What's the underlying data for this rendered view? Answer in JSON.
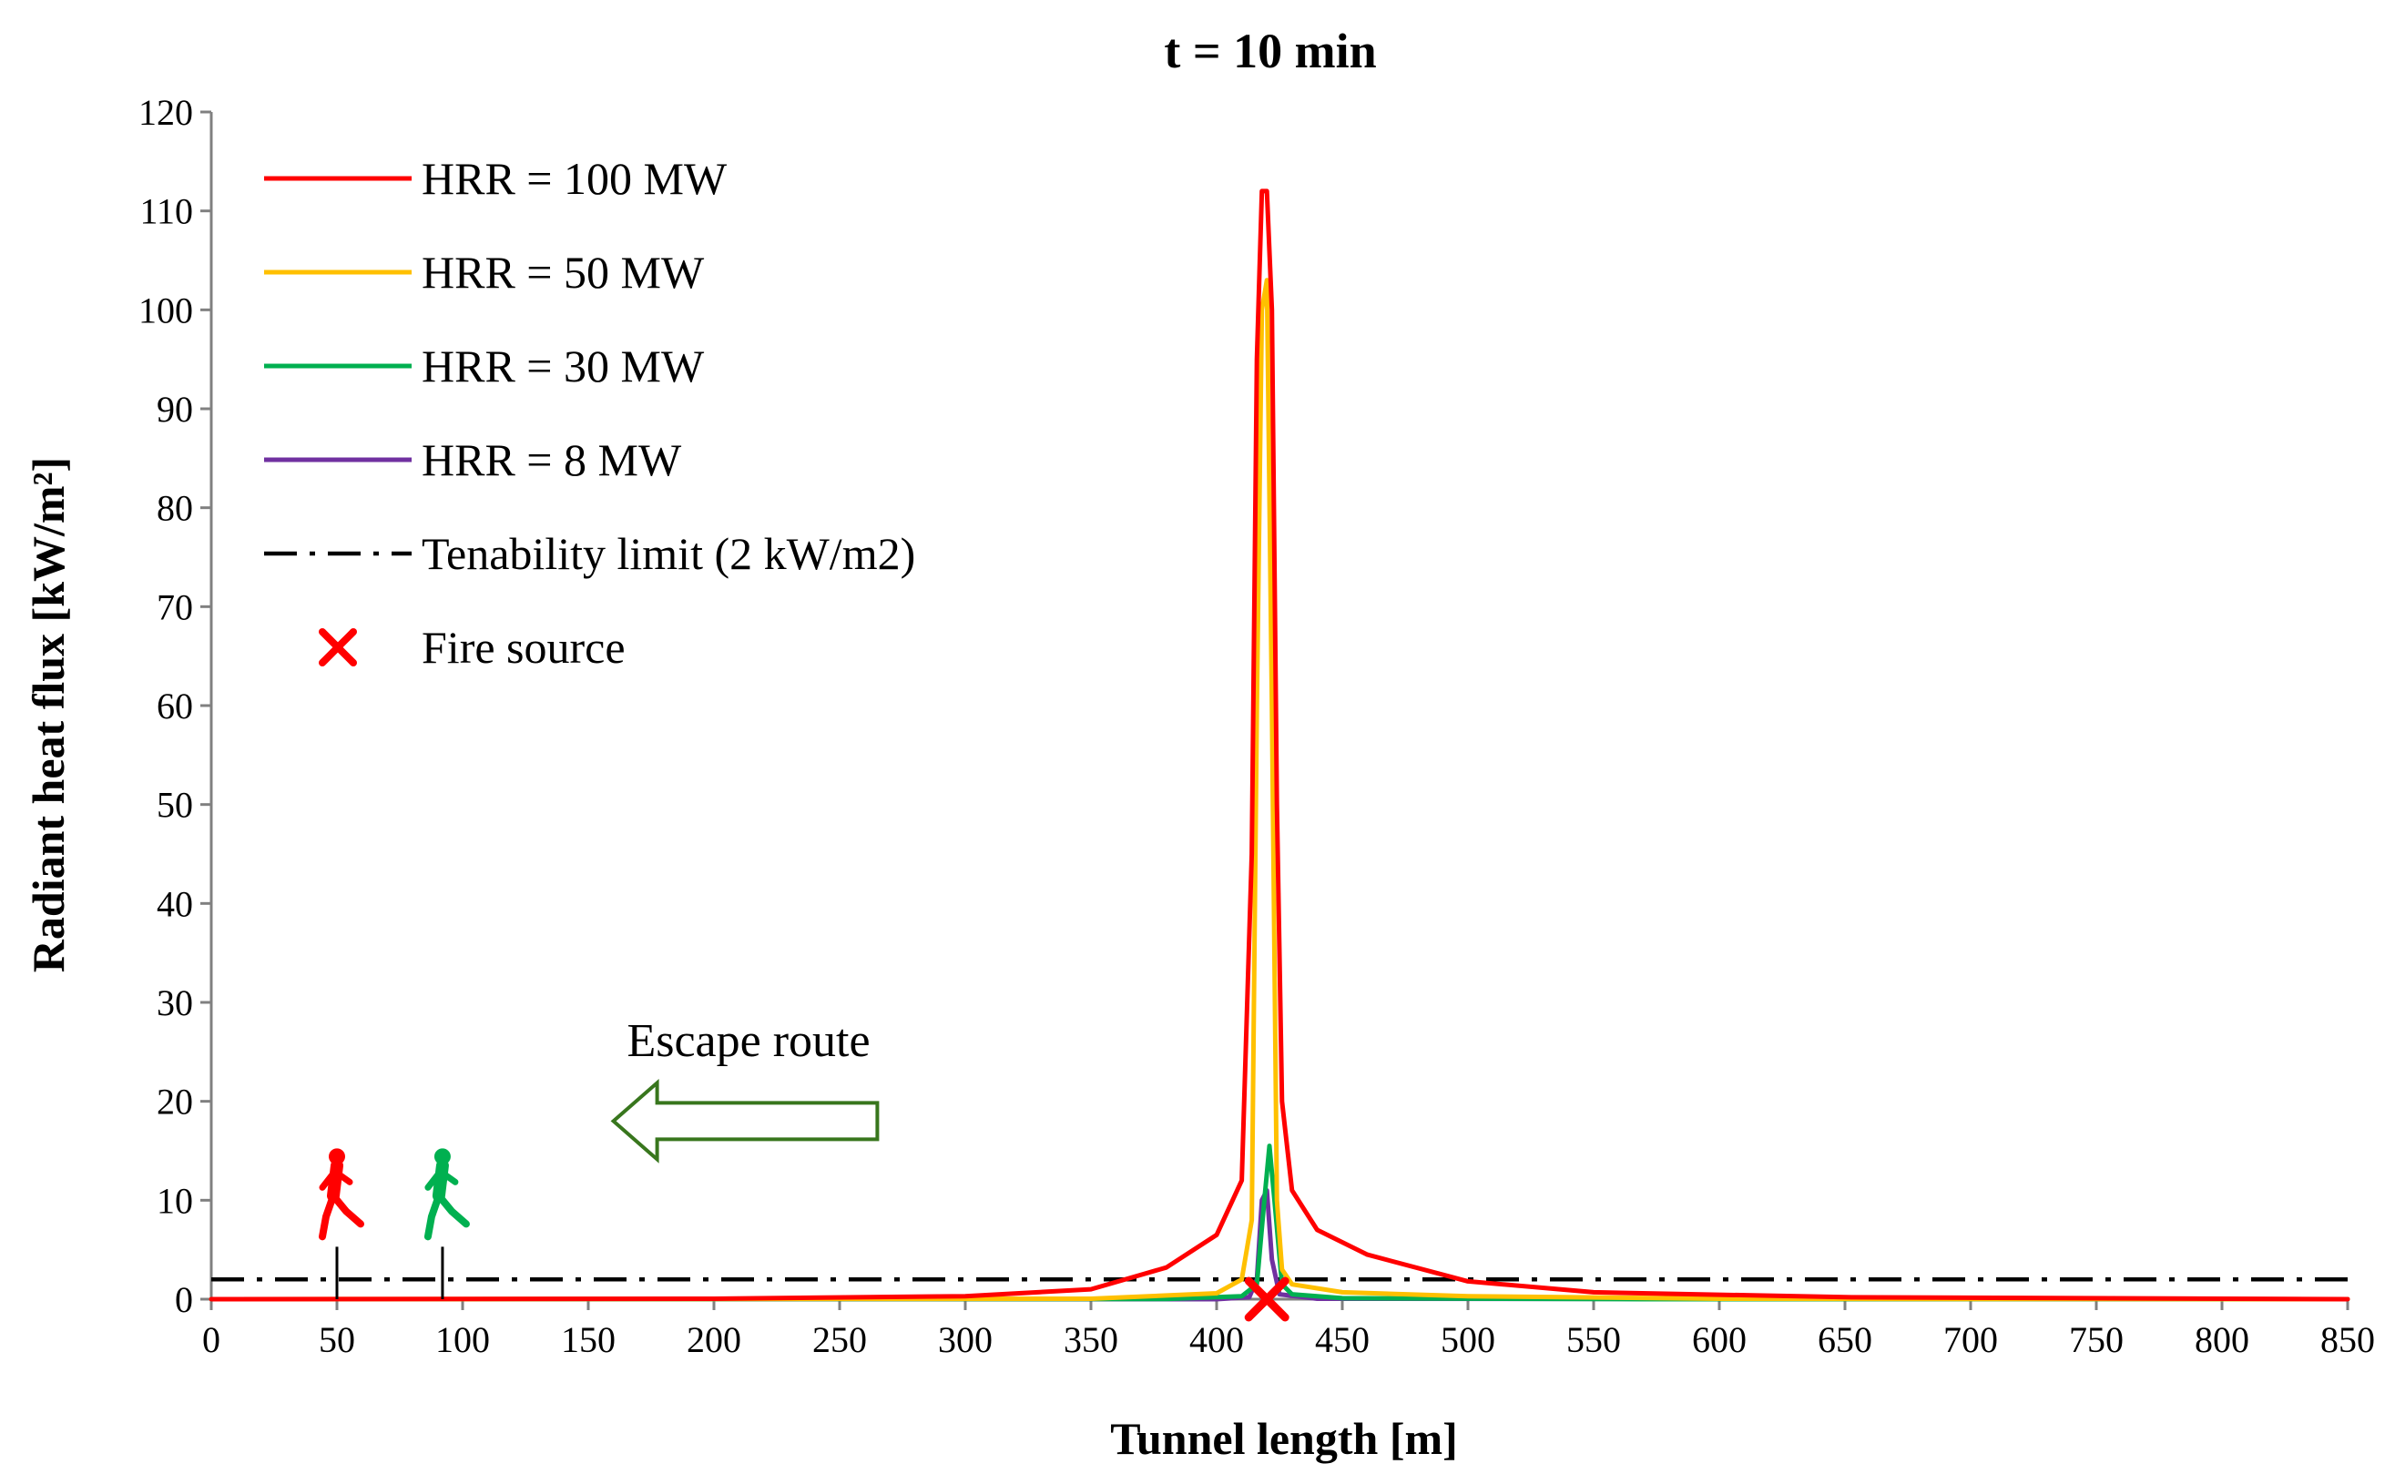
{
  "chart_data": {
    "type": "line",
    "title": "t = 10 min",
    "xlabel": "Tunnel length [m]",
    "ylabel": "Radiant heat flux [kW/m²]",
    "xlim": [
      0,
      850
    ],
    "ylim": [
      0,
      120
    ],
    "xticks": [
      0,
      50,
      100,
      150,
      200,
      250,
      300,
      350,
      400,
      450,
      500,
      550,
      600,
      650,
      700,
      750,
      800,
      850
    ],
    "yticks": [
      0,
      10,
      20,
      30,
      40,
      50,
      60,
      70,
      80,
      90,
      100,
      110,
      120
    ],
    "legend_position": "top-left",
    "series": [
      {
        "name": "HRR = 100 MW",
        "color": "#ff0000",
        "x": [
          0,
          200,
          300,
          350,
          380,
          400,
          410,
          414,
          416,
          418,
          420,
          422,
          424,
          426,
          430,
          440,
          460,
          500,
          550,
          650,
          850
        ],
        "y": [
          0,
          0.05,
          0.3,
          1.0,
          3.2,
          6.5,
          12,
          45,
          95,
          112,
          112,
          100,
          50,
          20,
          11,
          7,
          4.5,
          1.8,
          0.7,
          0.2,
          0
        ]
      },
      {
        "name": "HRR = 50 MW",
        "color": "#ffc000",
        "x": [
          0,
          350,
          400,
          410,
          414,
          416,
          418,
          420,
          422,
          424,
          426,
          430,
          450,
          500,
          600,
          850
        ],
        "y": [
          0,
          0.05,
          0.6,
          2.0,
          8,
          60,
          100,
          103,
          60,
          10,
          3,
          1.5,
          0.7,
          0.3,
          0.05,
          0
        ]
      },
      {
        "name": "HRR = 30 MW",
        "color": "#00b050",
        "x": [
          0,
          380,
          410,
          416,
          419,
          421,
          423,
          426,
          430,
          450,
          570,
          850
        ],
        "y": [
          0,
          0.02,
          0.3,
          1.5,
          10,
          15.5,
          10,
          1.5,
          0.5,
          0.1,
          0,
          0
        ]
      },
      {
        "name": "HRR = 8 MW",
        "color": "#7030a0",
        "x": [
          0,
          400,
          413,
          416,
          418,
          420,
          422,
          425,
          440,
          850
        ],
        "y": [
          0,
          0,
          0.2,
          2,
          10,
          11,
          4,
          0.5,
          0.05,
          0
        ]
      }
    ],
    "reference_line": {
      "name": "Tenability limit (2 kW/m2)",
      "y": 2,
      "color": "#000000"
    },
    "markers": [
      {
        "name": "Fire source",
        "x": 420,
        "y": 0,
        "symbol": "x",
        "color": "#ff0000"
      }
    ],
    "annotations": [
      {
        "text": "Escape route",
        "arrow_direction": "left",
        "arrow_color": "#38761d",
        "x_from": 265,
        "x_to": 160,
        "y": 18
      },
      {
        "figure": "running person",
        "color": "#ff0000",
        "x": 50
      },
      {
        "figure": "running person",
        "color": "#00b050",
        "x": 92
      }
    ]
  }
}
